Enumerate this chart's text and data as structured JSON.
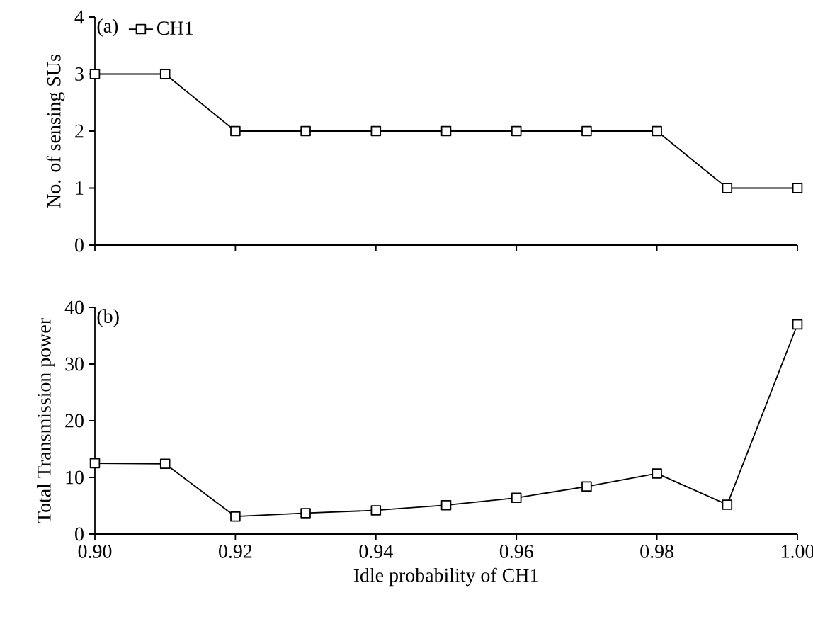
{
  "chart_data": [
    {
      "type": "line",
      "ylabel": "No. of sensing SUs",
      "annotations": [
        "(a)"
      ],
      "x": [
        0.9,
        0.91,
        0.92,
        0.93,
        0.94,
        0.95,
        0.96,
        0.97,
        0.98,
        0.99,
        1.0
      ],
      "series": [
        {
          "name": "CH1",
          "color": "#000000",
          "values": [
            3,
            3,
            2,
            2,
            2,
            2,
            2,
            2,
            2,
            1,
            1
          ]
        }
      ],
      "xlim": [
        0.9,
        1.0
      ],
      "xticks": [
        0.9,
        0.92,
        0.94,
        0.96,
        0.98,
        1.0
      ],
      "ylim": [
        0,
        4
      ],
      "yticks": [
        0,
        1,
        2,
        3,
        4
      ],
      "tick_labels": "y",
      "legend": "top left",
      "marker": "square",
      "line_style": "solid",
      "grid": false
    },
    {
      "type": "line",
      "ylabel": "Total Transmission power",
      "xlabel": "Idle probability of CH1",
      "annotations": [
        "(b)"
      ],
      "x": [
        0.9,
        0.91,
        0.92,
        0.93,
        0.94,
        0.95,
        0.96,
        0.97,
        0.98,
        0.99,
        1.0
      ],
      "series": [
        {
          "color": "#000000",
          "values": [
            12.5,
            12.4,
            3.1,
            3.7,
            4.2,
            5.1,
            6.4,
            8.4,
            10.7,
            5.2,
            37.0
          ]
        }
      ],
      "xlim": [
        0.9,
        1.0
      ],
      "xticks": [
        {
          "value": 0.9,
          "label": "0.90"
        },
        0.92,
        0.94,
        0.96,
        0.98,
        {
          "value": 1.0,
          "label": "1.00"
        }
      ],
      "ylim": [
        0,
        40
      ],
      "yticks": [
        0,
        10,
        20,
        30,
        40
      ],
      "marker": "square",
      "line_style": "solid",
      "grid": false
    }
  ]
}
